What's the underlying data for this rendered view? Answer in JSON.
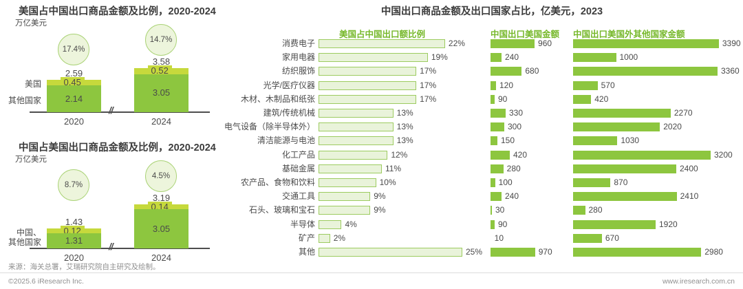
{
  "colors": {
    "green": "#8dc63f",
    "band_green": "#c6d93c",
    "outline_bar_fill": "#e9f3da",
    "outline_bar_border": "#9ccb5f",
    "circle_fill": "#edf5dc",
    "circle_border": "#abd378",
    "header_green": "#76b82a",
    "title_dark": "#3c3c3c",
    "text": "#4a4a4a",
    "axis": "#4d4d4d",
    "footer_gray": "#8f8f8f"
  },
  "chart_data": [
    {
      "type": "bar",
      "subtype": "stacked-vertical",
      "title": "美国占中国出口商品金额及比例，2020-2024",
      "unit": "万亿美元",
      "categories": [
        "2020",
        "2024"
      ],
      "series": [
        {
          "name": "美国",
          "values": [
            0.45,
            0.52
          ]
        },
        {
          "name": "其他国家",
          "values": [
            2.14,
            3.05
          ]
        }
      ],
      "totals": [
        2.59,
        3.58
      ],
      "share_pct": [
        "17.4%",
        "14.7%"
      ],
      "axis_break": true
    },
    {
      "type": "bar",
      "subtype": "stacked-vertical",
      "title": "中国占美国出口商品金额及比例，2020-2024",
      "unit": "万亿美元",
      "categories": [
        "2020",
        "2024"
      ],
      "series": [
        {
          "name": "中国、",
          "values": [
            0.12,
            0.14
          ]
        },
        {
          "name": "其他国家",
          "values": [
            1.31,
            3.05
          ]
        }
      ],
      "totals": [
        1.43,
        3.19
      ],
      "share_pct": [
        "8.7%",
        "4.5%"
      ],
      "axis_break": true
    },
    {
      "type": "bar",
      "subtype": "horizontal-multicolumn",
      "title": "中国出口商品金额及出口国家占比，亿美元，2023",
      "columns": [
        "美国占中国出口额比例",
        "中国出口美国金额",
        "中国出口美国外其他国家金额"
      ],
      "categories": [
        "消费电子",
        "家用电器",
        "纺织服饰",
        "光学/医疗仪器",
        "木材、木制品和纸张",
        "建筑/传统机械",
        "电气设备（除半导体外）",
        "清洁能源与电池",
        "化工产品",
        "基础金属",
        "农产品、食物和饮料",
        "交通工具",
        "石头、玻璃和宝石",
        "半导体",
        "矿产",
        "其他"
      ],
      "series": [
        {
          "name": "美国占中国出口额比例",
          "unit": "%",
          "values": [
            22,
            19,
            17,
            17,
            17,
            13,
            13,
            13,
            12,
            11,
            10,
            9,
            9,
            4,
            2,
            25
          ]
        },
        {
          "name": "中国出口美国金额",
          "values": [
            960,
            240,
            680,
            120,
            90,
            330,
            300,
            150,
            420,
            280,
            100,
            240,
            30,
            90,
            10,
            970
          ]
        },
        {
          "name": "中国出口美国外其他国家金额",
          "values": [
            3390,
            1000,
            3360,
            570,
            420,
            2270,
            2020,
            1030,
            3200,
            2400,
            870,
            2410,
            280,
            1920,
            670,
            2980
          ]
        }
      ]
    }
  ],
  "footer": {
    "source": "来源：海关总署，艾瑞研究院自主研究及绘制。",
    "copyright": "©2025.6 iResearch Inc.",
    "site": "www.iresearch.com.cn"
  }
}
